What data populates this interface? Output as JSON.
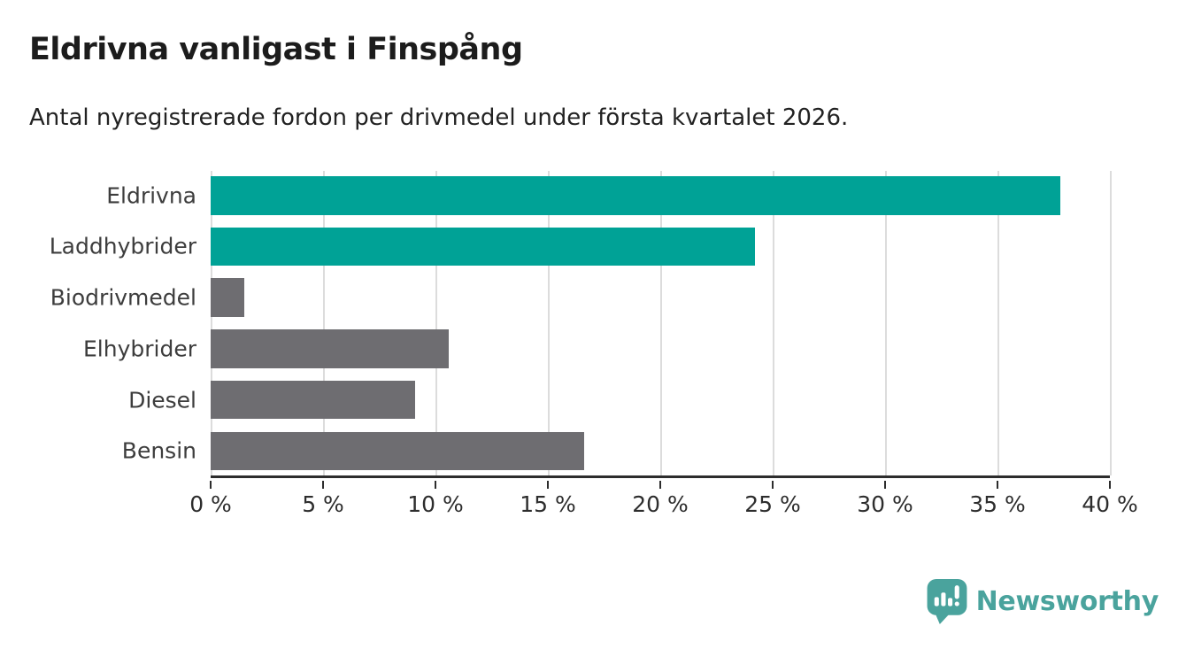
{
  "header": {
    "title": "Eldrivna vanligast i Finspång",
    "subtitle": "Antal nyregistrerade fordon per drivmedel under första kvartalet 2026."
  },
  "chart_data": {
    "type": "bar",
    "orientation": "horizontal",
    "title": "Eldrivna vanligast i Finspång",
    "subtitle": "Antal nyregistrerade fordon per drivmedel under första kvartalet 2026.",
    "categories": [
      "Eldrivna",
      "Laddhybrider",
      "Biodrivmedel",
      "Elhybrider",
      "Diesel",
      "Bensin"
    ],
    "values": [
      37.8,
      24.2,
      1.5,
      10.6,
      9.1,
      16.6
    ],
    "bar_colors": [
      "#00a296",
      "#00a296",
      "#6e6d71",
      "#6e6d71",
      "#6e6d71",
      "#6e6d71"
    ],
    "highlight_color": "#00a296",
    "default_color": "#6e6d71",
    "xlabel": "",
    "ylabel": "",
    "xlim": [
      0,
      40
    ],
    "x_ticks": [
      0,
      5,
      10,
      15,
      20,
      25,
      30,
      35,
      40
    ],
    "x_tick_labels": [
      "0 %",
      "5 %",
      "10 %",
      "15 %",
      "20 %",
      "25 %",
      "30 %",
      "35 %",
      "40 %"
    ],
    "grid": "vertical-only",
    "gridline_color": "#dcdcdc",
    "axis_color": "#2d2d2d",
    "legend": "none"
  },
  "footer": {
    "brand": "Newsworthy",
    "brand_color": "#4aa39d",
    "icon": "newsworthy-pin-barchart-icon"
  }
}
